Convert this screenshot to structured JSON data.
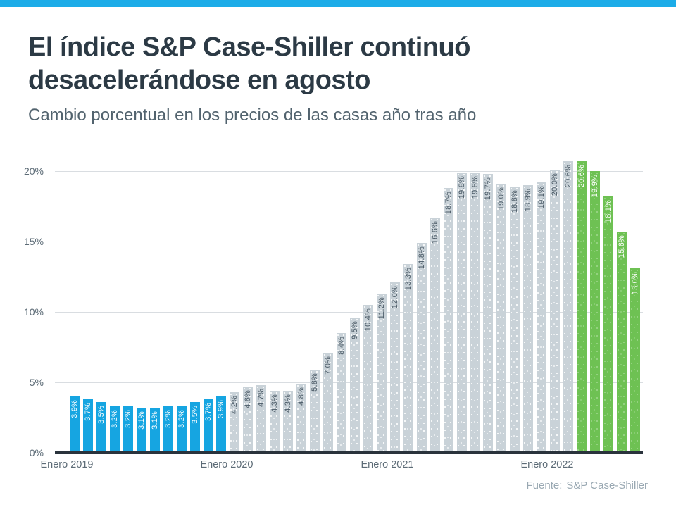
{
  "page": {
    "accent_bar_color": "#1CACE8",
    "background_color": "#FFFFFF"
  },
  "header": {
    "title_lines": [
      "El índice S&P Case-Shiller continuó",
      "desacelerándose en agosto"
    ],
    "subtitle": "Cambio porcentual en los precios de las casas año tras año"
  },
  "footer": {
    "source_label": "Fuente:",
    "source_value": "S&P Case-Shiller"
  },
  "chart_data": {
    "type": "bar",
    "title": "El índice S&P Case-Shiller continuó desacelerándose en agosto",
    "subtitle": "Cambio porcentual en los precios de las casas año tras año",
    "unit": "percent",
    "grid": "horizontal",
    "legend": "none",
    "ylim": [
      0,
      20
    ],
    "y_axis": {
      "ticks": [
        {
          "value": 0,
          "label": "0%"
        },
        {
          "value": 5,
          "label": "5%"
        },
        {
          "value": 10,
          "label": "10%"
        },
        {
          "value": 15,
          "label": "15%"
        },
        {
          "value": 20,
          "label": "20%"
        }
      ]
    },
    "x_axis": {
      "labels": [
        {
          "text": "Enero 2019",
          "month_index": 0
        },
        {
          "text": "Enero 2020",
          "month_index": 12
        },
        {
          "text": "Enero 2021",
          "month_index": 24
        },
        {
          "text": "Enero 2022",
          "month_index": 36
        }
      ]
    },
    "colors": {
      "blue": "#16A5E1",
      "gray": "#C9D2D8",
      "green": "#6EC153"
    },
    "series": [
      {
        "name": "Cambio porcentual en los precios de las casas año tras año",
        "points": [
          {
            "value": 3.9,
            "label": "3.9%",
            "color": "blue"
          },
          {
            "value": 3.7,
            "label": "3.7%",
            "color": "blue"
          },
          {
            "value": 3.5,
            "label": "3.5%",
            "color": "blue"
          },
          {
            "value": 3.2,
            "label": "3.2%",
            "color": "blue"
          },
          {
            "value": 3.2,
            "label": "3.2%",
            "color": "blue"
          },
          {
            "value": 3.1,
            "label": "3.1%",
            "color": "blue"
          },
          {
            "value": 3.1,
            "label": "3.1%",
            "color": "blue"
          },
          {
            "value": 3.2,
            "label": "3.2%",
            "color": "blue"
          },
          {
            "value": 3.2,
            "label": "3.2%",
            "color": "blue"
          },
          {
            "value": 3.5,
            "label": "3.5%",
            "color": "blue"
          },
          {
            "value": 3.7,
            "label": "3.7%",
            "color": "blue"
          },
          {
            "value": 3.9,
            "label": "3.9%",
            "color": "blue"
          },
          {
            "value": 4.2,
            "label": "4.2%",
            "color": "gray"
          },
          {
            "value": 4.6,
            "label": "4.6%",
            "color": "gray"
          },
          {
            "value": 4.7,
            "label": "4.7%",
            "color": "gray"
          },
          {
            "value": 4.3,
            "label": "4.3%",
            "color": "gray"
          },
          {
            "value": 4.3,
            "label": "4.3%",
            "color": "gray"
          },
          {
            "value": 4.8,
            "label": "4.8%",
            "color": "gray"
          },
          {
            "value": 5.8,
            "label": "5.8%",
            "color": "gray"
          },
          {
            "value": 7.0,
            "label": "7.0%",
            "color": "gray"
          },
          {
            "value": 8.4,
            "label": "8.4%",
            "color": "gray"
          },
          {
            "value": 9.5,
            "label": "9.5%",
            "color": "gray"
          },
          {
            "value": 10.4,
            "label": "10.4%",
            "color": "gray"
          },
          {
            "value": 11.2,
            "label": "11.2%",
            "color": "gray"
          },
          {
            "value": 12.0,
            "label": "12.0%",
            "color": "gray"
          },
          {
            "value": 13.3,
            "label": "13.3%",
            "color": "gray"
          },
          {
            "value": 14.8,
            "label": "14.8%",
            "color": "gray"
          },
          {
            "value": 16.6,
            "label": "16.6%",
            "color": "gray"
          },
          {
            "value": 18.7,
            "label": "18.7%",
            "color": "gray"
          },
          {
            "value": 19.8,
            "label": "19.8%",
            "color": "gray"
          },
          {
            "value": 19.8,
            "label": "19.8%",
            "color": "gray"
          },
          {
            "value": 19.7,
            "label": "19.7%",
            "color": "gray"
          },
          {
            "value": 19.0,
            "label": "19.0%",
            "color": "gray"
          },
          {
            "value": 18.8,
            "label": "18.8%",
            "color": "gray"
          },
          {
            "value": 18.9,
            "label": "18.9%",
            "color": "gray"
          },
          {
            "value": 19.1,
            "label": "19.1%",
            "color": "gray"
          },
          {
            "value": 20.0,
            "label": "20.0%",
            "color": "gray"
          },
          {
            "value": 20.6,
            "label": "20.6%",
            "color": "gray"
          },
          {
            "value": 20.6,
            "label": "20.6%",
            "color": "green"
          },
          {
            "value": 19.9,
            "label": "19.9%",
            "color": "green"
          },
          {
            "value": 18.1,
            "label": "18.1%",
            "color": "green"
          },
          {
            "value": 15.6,
            "label": "15.6%",
            "color": "green"
          },
          {
            "value": 13.0,
            "label": "13.0%",
            "color": "green"
          }
        ]
      }
    ]
  }
}
